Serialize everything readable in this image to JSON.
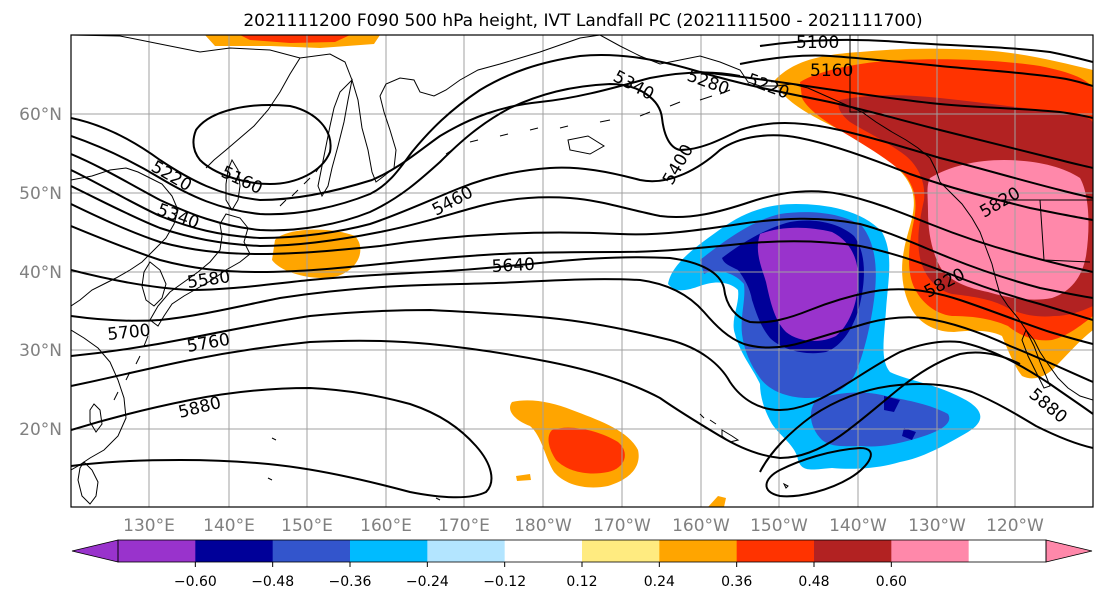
{
  "title": "2021111200 F090 500 hPa height, IVT Landfall PC (2021111500 - 2021111700)",
  "lat_labels": [
    "60°N",
    "50°N",
    "40°N",
    "30°N",
    "20°N"
  ],
  "lon_labels": [
    "130°E",
    "140°E",
    "150°E",
    "160°E",
    "170°E",
    "180°W",
    "170°W",
    "160°W",
    "150°W",
    "140°W",
    "130°W",
    "120°W"
  ],
  "height_contour_labels": [
    "5100",
    "5160",
    "5220",
    "5280",
    "5340",
    "5400",
    "5460",
    "5640",
    "5160",
    "5220",
    "5340",
    "5580",
    "5700",
    "5760",
    "5880",
    "5820",
    "5880",
    "5820"
  ],
  "colorbar": {
    "tick_labels": [
      "−0.60",
      "−0.48",
      "−0.36",
      "−0.24",
      "−0.12",
      "0.12",
      "0.24",
      "0.36",
      "0.48",
      "0.60"
    ],
    "colors": [
      "#9933cc",
      "#000099",
      "#3355cc",
      "#00bbff",
      "#b3e5ff",
      "#ffffff",
      "#ffeb80",
      "#ffa500",
      "#ff3300",
      "#b22222",
      "#ff88aa",
      "#ffffff"
    ]
  },
  "shading_colors": {
    "neg_060": "#9933cc",
    "neg_048": "#000099",
    "neg_036": "#3355cc",
    "neg_024": "#00bbff",
    "pos_024": "#ffa500",
    "pos_036": "#ff3300",
    "pos_048": "#b22222",
    "pos_060": "#ff88aa"
  }
}
